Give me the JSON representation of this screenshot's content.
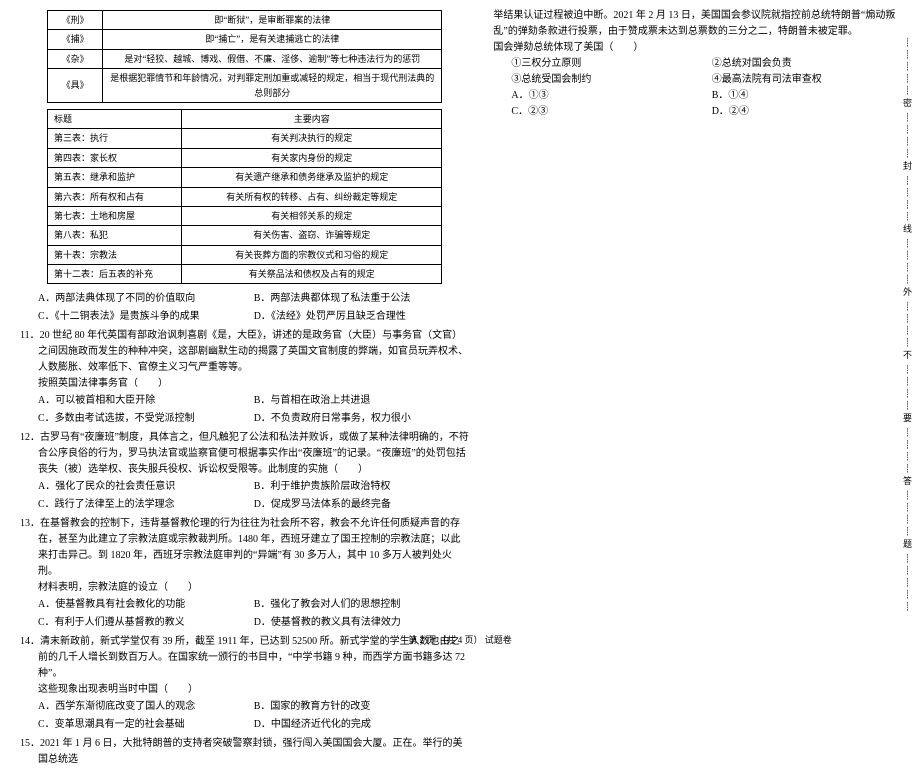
{
  "table1": {
    "rows": [
      [
        "《刑》",
        "即“断狱”，是审断罪案的法律"
      ],
      [
        "《捕》",
        "即“捕亡”，是有关逮捕逃亡的法律"
      ],
      [
        "《杂》",
        "是对“轻狡、越城、博戏、假借、不廉、淫侈、逾制”等七种违法行为的惩罚"
      ],
      [
        "《具》",
        "是根据犯罪情节和年龄情况，对判罪定刑加重或减轻的规定，相当于现代刑法典的总则部分"
      ]
    ]
  },
  "table2": {
    "head": [
      "标题",
      "主要内容"
    ],
    "rows": [
      [
        "第三表：执行",
        "有关判决执行的规定"
      ],
      [
        "第四表：家长权",
        "有关家内身份的规定"
      ],
      [
        "第五表：继承和监护",
        "有关遗产继承和债务继承及监护的规定"
      ],
      [
        "第六表：所有权和占有",
        "有关所有权的转移、占有、纠纷裁定等规定"
      ],
      [
        "第七表：土地和房屋",
        "有关相邻关系的规定"
      ],
      [
        "第八表：私犯",
        "有关伤害、盗窃、诈骗等规定"
      ],
      [
        "第十表：宗教法",
        "有关丧葬方面的宗教仪式和习俗的规定"
      ],
      [
        "第十二表：后五表的补充",
        "有关祭品法和债权及占有的规定"
      ]
    ]
  },
  "q10": {
    "opts": [
      "A．两部法典体现了不同的价值取向",
      "B．两部法典都体现了私法重于公法",
      "C．《十二铜表法》是贵族斗争的成果",
      "D．《法经》处罚严厉且缺乏合理性"
    ]
  },
  "q11": {
    "text": "11．20 世纪 80 年代英国有部政治讽刺喜剧《是，大臣》，讲述的是政务官（大臣）与事务官（文官）之间因施政而发生的种种冲突，这部剧幽默生动的揭露了英国文官制度的弊端，如官员玩弄权术、人数膨胀、效率低下、官僚主义习气严重等等。",
    "sub": "按照英国法律事务官（　　）",
    "opts": [
      "A．可以被首相和大臣开除",
      "B．与首相在政治上共进退",
      "C．多数由考试选拔，不受党派控制",
      "D．不负责政府日常事务，权力很小"
    ]
  },
  "q12": {
    "text": "12．古罗马有“夜廉班”制度，具体言之，但凡触犯了公法和私法并败诉，或做了某种法律明确的，不符合公序良俗的行为，罗马执法官或监察官便可根据事实作出“夜廉班”的记录。“夜廉班”的处罚包括丧失（被）选举权、丧失服兵役权、诉讼权受限等。此制度的实施（　　）",
    "opts": [
      "A．强化了民众的社会责任意识",
      "B．利于维护贵族阶层政治特权",
      "C．践行了法律至上的法学理念",
      "D．促成罗马法体系的最终完备"
    ]
  },
  "q13": {
    "text": "13．在基督教会的控制下，违背基督教伦理的行为往往为社会所不容，教会不允许任何质疑声音的存在，甚至为此建立了宗教法庭或宗教裁判所。1480 年，西班牙建立了国王控制的宗教法庭；以此来打击异己。到 1820 年，西班牙宗教法庭审判的“异端”有 30 多万人，其中 10 多万人被判处火刑。",
    "sub": "材料表明，宗教法庭的设立（　　）",
    "opts": [
      "A．使基督教具有社会教化的功能",
      "B．强化了教会对人们的思想控制",
      "C．有利于人们遵从基督教的教义",
      "D．使基督教的教义具有法律效力"
    ]
  },
  "q14": {
    "text": "14．清末新政前，新式学堂仅有 39 所，截至 1911 年，已达到 52500 所。新式学堂的学生人数也由之前的几千人增长到数百万人。在国家统一颁行的书目中，“中学书籍 9 种，而西学方面书籍多达 72 种”。",
    "sub": "这些现象出现表明当时中国（　　）",
    "opts": [
      "A．西学东渐彻底改变了国人的观念",
      "B．国家的教育方针的改变",
      "C．变革思潮具有一定的社会基础",
      "D．中国经济近代化的完成"
    ]
  },
  "q15": {
    "text": "15．2021 年 1 月 6 日，大批特朗普的支持者突破警察封锁，强行闯入美国国会大厦。正在。举行的美国总统选",
    "cont": "举结果认证过程被迫中断。2021 年 2 月 13 日，美国国会参议院就指控前总统特朗普“煽动叛乱”的弹劾条款进行投票，由于赞成票未达到总票数的三分之二，特朗普未被定罪。",
    "sub": "国会弹劾总统体现了美国（　　）",
    "items": [
      "①三权分立原则",
      "②总统对国会负责",
      "③总统受国会制约",
      "④最高法院有司法审查权"
    ],
    "opts": [
      "A．①③",
      "B．①④",
      "C．②③",
      "D．②④"
    ]
  },
  "margin": "密封线外不要答题",
  "footer": "第 2 页 （共 4 页） 试题卷"
}
